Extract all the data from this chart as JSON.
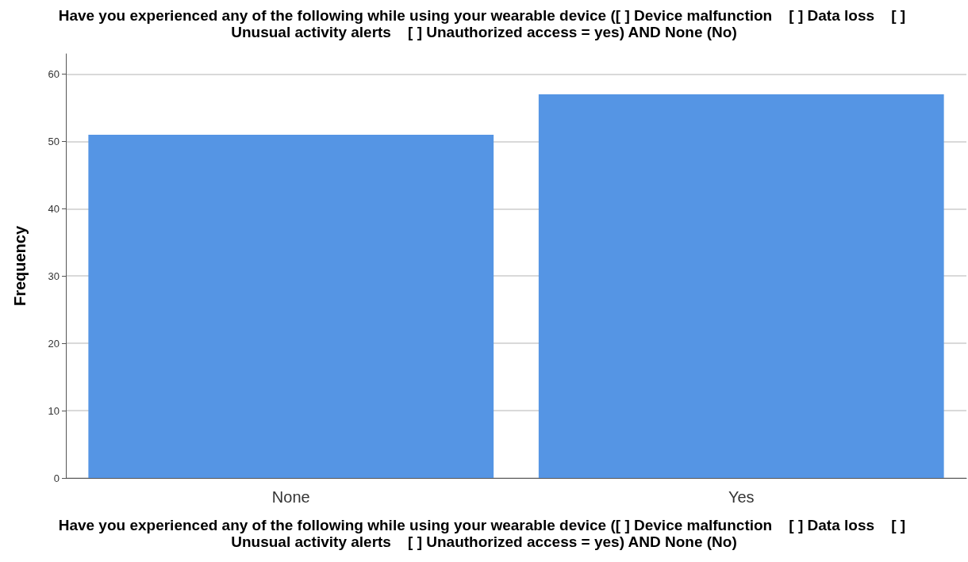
{
  "chart_data": {
    "type": "bar",
    "title": "Have you experienced any of the following while using your wearable device ([ ] Device malfunction    [ ] Data loss    [ ] Unusual activity alerts    [ ] Unauthorized access = yes) AND None (No)",
    "xlabel": "Have you experienced any of the following while using your wearable device ([ ] Device malfunction    [ ] Data loss    [ ] Unusual activity alerts    [ ] Unauthorized access = yes) AND None (No)",
    "ylabel": "Frequency",
    "categories": [
      "None",
      "Yes"
    ],
    "values": [
      51,
      57
    ],
    "color": "#5595e4",
    "ylim": [
      0,
      63
    ],
    "yticks": [
      0,
      10,
      20,
      30,
      40,
      50,
      60
    ],
    "grid": "y"
  }
}
